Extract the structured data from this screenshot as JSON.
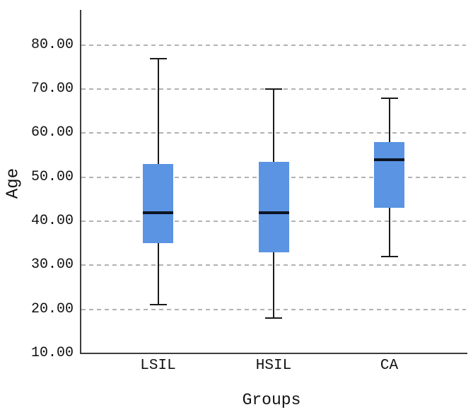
{
  "chart_data": {
    "type": "boxplot",
    "title": "",
    "xlabel": "Groups",
    "ylabel": "Age",
    "categories": [
      "LSIL",
      "HSIL",
      "CA"
    ],
    "series": [
      {
        "name": "LSIL",
        "min": 21,
        "q1": 35,
        "median": 42,
        "q3": 53,
        "max": 77
      },
      {
        "name": "HSIL",
        "min": 18,
        "q1": 33,
        "median": 42,
        "q3": 53.5,
        "max": 70
      },
      {
        "name": "CA",
        "min": 32,
        "q1": 43,
        "median": 54,
        "q3": 58,
        "max": 68
      }
    ],
    "y_ticks": [
      "10.00",
      "20.00",
      "30.00",
      "40.00",
      "50.00",
      "60.00",
      "70.00",
      "80.00"
    ],
    "ylim": [
      10,
      88
    ],
    "grid": "horizontal-dashed",
    "legend": "none",
    "colors": {
      "box_fill": "#5A94E2",
      "median": "#0D1424",
      "whisker": "#1a1a1a",
      "axis": "#3d3d3d",
      "gridline": "#b2b2b2",
      "text": "#111111",
      "background": "#ffffff"
    }
  }
}
